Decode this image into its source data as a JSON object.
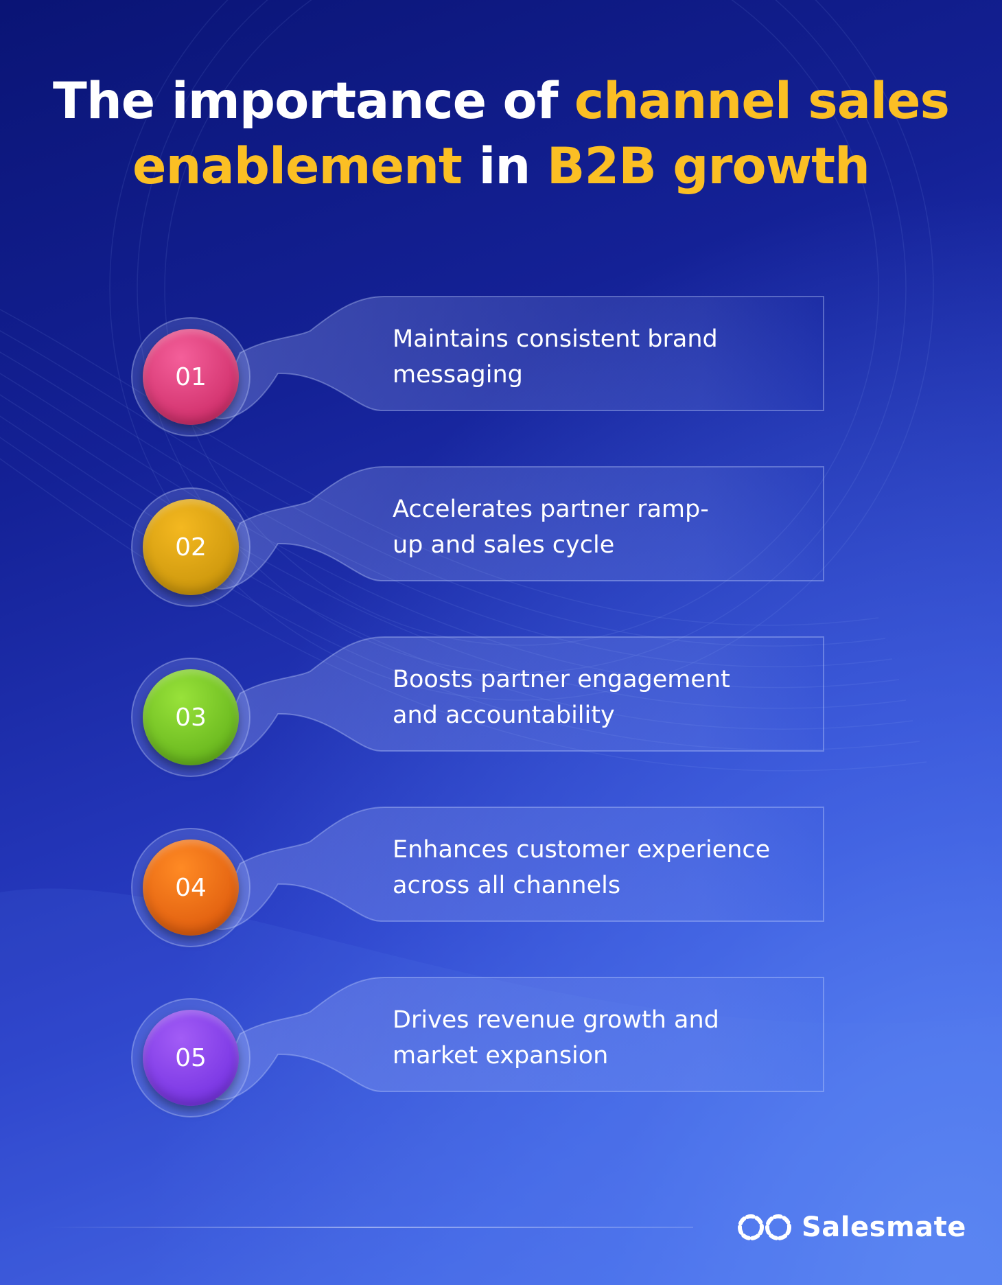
{
  "title": {
    "part1": "The importance of ",
    "part2": "channel sales",
    "part3": "enablement",
    "part4": " in ",
    "part5": "B2B growth"
  },
  "items": [
    {
      "number": "01",
      "text": "Maintains consistent brand\nmessaging",
      "color_top": "#f45f9a",
      "color_bottom": "#c4205c"
    },
    {
      "number": "02",
      "text": "Accelerates partner ramp-\nup and sales cycle",
      "color_top": "#f4b820",
      "color_bottom": "#bf8c06"
    },
    {
      "number": "03",
      "text": "Boosts partner engagement\nand accountability",
      "color_top": "#98e23a",
      "color_bottom": "#58a814"
    },
    {
      "number": "04",
      "text": "Enhances customer experience\nacross all channels",
      "color_top": "#ff8a24",
      "color_bottom": "#d65008"
    },
    {
      "number": "05",
      "text": "Drives revenue growth and\nmarket expansion",
      "color_top": "#a25cf6",
      "color_bottom": "#6a28dc"
    }
  ],
  "brand": {
    "name": "Salesmate",
    "icon": "salesmate-logo-icon"
  },
  "colors": {
    "highlight": "#fbbf24",
    "text": "#ffffff"
  }
}
